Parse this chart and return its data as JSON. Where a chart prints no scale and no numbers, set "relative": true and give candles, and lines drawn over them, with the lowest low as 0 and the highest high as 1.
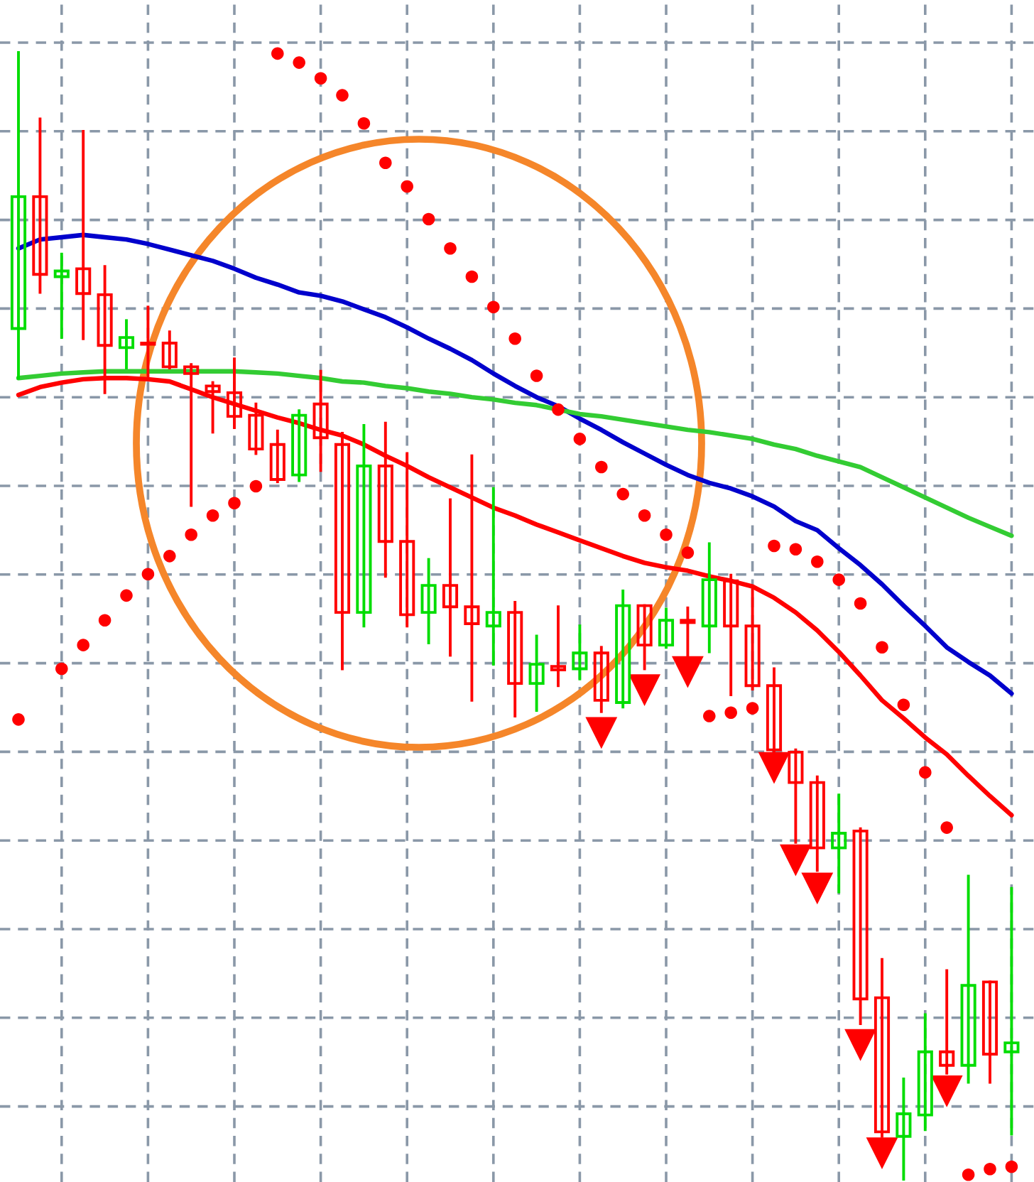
{
  "chart_data": {
    "type": "candlestick",
    "relative": true,
    "grid": true,
    "tick_labels": false,
    "categories": [
      null,
      null,
      null,
      null,
      null,
      null,
      null,
      null,
      null,
      null,
      null,
      null,
      null,
      null,
      null,
      null,
      null,
      null,
      null,
      null,
      null,
      null,
      null,
      null,
      null,
      null,
      null,
      null,
      null,
      null,
      null,
      null,
      null,
      null,
      null,
      null,
      null,
      null,
      null,
      null,
      null,
      null,
      null,
      null,
      null,
      null,
      null
    ],
    "ohlc": [
      [
        0.755,
        1.0,
        0.711,
        0.872
      ],
      [
        0.872,
        0.941,
        0.787,
        0.803
      ],
      [
        0.801,
        0.821,
        0.747,
        0.806
      ],
      [
        0.808,
        0.93,
        0.746,
        0.786
      ],
      [
        0.785,
        0.81,
        0.698,
        0.74
      ],
      [
        0.738,
        0.762,
        0.72,
        0.747
      ],
      [
        0.742,
        0.774,
        0.711,
        0.741
      ],
      [
        0.742,
        0.752,
        0.72,
        0.721
      ],
      [
        0.721,
        0.723,
        0.598,
        0.715
      ],
      [
        0.704,
        0.707,
        0.663,
        0.699
      ],
      [
        0.698,
        0.728,
        0.667,
        0.677
      ],
      [
        0.678,
        0.688,
        0.644,
        0.648
      ],
      [
        0.652,
        0.664,
        0.619,
        0.621
      ],
      [
        0.625,
        0.682,
        0.62,
        0.678
      ],
      [
        0.688,
        0.717,
        0.629,
        0.658
      ],
      [
        0.652,
        0.662,
        0.453,
        0.503
      ],
      [
        0.503,
        0.669,
        0.491,
        0.633
      ],
      [
        0.633,
        0.671,
        0.535,
        0.566
      ],
      [
        0.566,
        0.644,
        0.491,
        0.501
      ],
      [
        0.503,
        0.55,
        0.476,
        0.527
      ],
      [
        0.527,
        0.603,
        0.465,
        0.508
      ],
      [
        0.508,
        0.642,
        0.425,
        0.493
      ],
      [
        0.491,
        0.613,
        0.457,
        0.503
      ],
      [
        0.503,
        0.512,
        0.411,
        0.44
      ],
      [
        0.44,
        0.482,
        0.416,
        0.457
      ],
      [
        0.455,
        0.508,
        0.438,
        0.452
      ],
      [
        0.453,
        0.491,
        0.444,
        0.467
      ],
      [
        0.467,
        0.472,
        0.415,
        0.425
      ],
      [
        0.423,
        0.522,
        0.419,
        0.509
      ],
      [
        0.509,
        0.509,
        0.453,
        0.474
      ],
      [
        0.474,
        0.506,
        0.472,
        0.496
      ],
      [
        0.496,
        0.507,
        0.459,
        0.494
      ],
      [
        0.491,
        0.564,
        0.468,
        0.532
      ],
      [
        0.531,
        0.536,
        0.43,
        0.491
      ],
      [
        0.491,
        0.523,
        0.435,
        0.438
      ],
      [
        0.438,
        0.453,
        0.377,
        0.381
      ],
      [
        0.379,
        0.381,
        0.299,
        0.352
      ],
      [
        0.352,
        0.357,
        0.274,
        0.294
      ],
      [
        0.294,
        0.341,
        0.255,
        0.307
      ],
      [
        0.309,
        0.311,
        0.138,
        0.16
      ],
      [
        0.161,
        0.195,
        0.038,
        0.042
      ],
      [
        0.038,
        0.089,
        0.0,
        0.058
      ],
      [
        0.057,
        0.146,
        0.044,
        0.113
      ],
      [
        0.113,
        0.185,
        0.094,
        0.101
      ],
      [
        0.101,
        0.269,
        0.086,
        0.172
      ],
      [
        0.175,
        0.175,
        0.086,
        0.111
      ],
      [
        0.113,
        0.258,
        0.04,
        0.121
      ]
    ],
    "colors": [
      "#00dd00",
      "#ff0000",
      "#00dd00",
      "#ff0000",
      "#ff0000",
      "#00dd00",
      "#ff0000",
      "#ff0000",
      "#ff0000",
      "#ff0000",
      "#ff0000",
      "#ff0000",
      "#ff0000",
      "#00dd00",
      "#ff0000",
      "#ff0000",
      "#00dd00",
      "#ff0000",
      "#ff0000",
      "#00dd00",
      "#ff0000",
      "#ff0000",
      "#00dd00",
      "#ff0000",
      "#00dd00",
      "#ff0000",
      "#00dd00",
      "#ff0000",
      "#00dd00",
      "#ff0000",
      "#00dd00",
      "#ff0000",
      "#00dd00",
      "#ff0000",
      "#ff0000",
      "#ff0000",
      "#ff0000",
      "#ff0000",
      "#00dd00",
      "#ff0000",
      "#ff0000",
      "#00dd00",
      "#00dd00",
      "#ff0000",
      "#00dd00",
      "#ff0000",
      "#00dd00"
    ],
    "series": [
      {
        "type": "line",
        "color": "#0000cc",
        "values": [
          0.826,
          0.834,
          0.836,
          0.838,
          0.836,
          0.834,
          0.83,
          0.825,
          0.82,
          0.815,
          0.808,
          0.8,
          0.794,
          0.787,
          0.784,
          0.779,
          0.772,
          0.765,
          0.756,
          0.746,
          0.737,
          0.727,
          0.715,
          0.704,
          0.694,
          0.686,
          0.675,
          0.665,
          0.654,
          0.644,
          0.634,
          0.625,
          0.618,
          0.613,
          0.606,
          0.597,
          0.584,
          0.576,
          0.56,
          0.545,
          0.528,
          0.509,
          0.491,
          0.472,
          0.459,
          0.447,
          0.431
        ]
      },
      {
        "type": "line",
        "color": "#33cc33",
        "values": [
          0.711,
          0.713,
          0.715,
          0.716,
          0.717,
          0.717,
          0.717,
          0.717,
          0.717,
          0.717,
          0.717,
          0.716,
          0.715,
          0.713,
          0.711,
          0.708,
          0.707,
          0.704,
          0.702,
          0.699,
          0.697,
          0.694,
          0.692,
          0.689,
          0.687,
          0.683,
          0.679,
          0.677,
          0.674,
          0.671,
          0.668,
          0.665,
          0.663,
          0.66,
          0.657,
          0.652,
          0.648,
          0.642,
          0.637,
          0.632,
          0.623,
          0.614,
          0.605,
          0.596,
          0.587,
          0.579,
          0.571
        ]
      },
      {
        "type": "line",
        "color": "#ff0000",
        "values": [
          0.696,
          0.703,
          0.707,
          0.71,
          0.711,
          0.711,
          0.71,
          0.708,
          0.701,
          0.694,
          0.688,
          0.682,
          0.676,
          0.671,
          0.665,
          0.66,
          0.652,
          0.642,
          0.633,
          0.623,
          0.614,
          0.605,
          0.596,
          0.589,
          0.581,
          0.574,
          0.567,
          0.56,
          0.553,
          0.547,
          0.543,
          0.54,
          0.535,
          0.531,
          0.526,
          0.516,
          0.503,
          0.487,
          0.468,
          0.447,
          0.425,
          0.409,
          0.392,
          0.377,
          0.358,
          0.34,
          0.323
        ]
      },
      {
        "type": "scatter",
        "marker": "circle",
        "color": "#ff0000",
        "values": [
          0.408,
          null,
          0.453,
          0.474,
          0.496,
          0.518,
          0.537,
          0.553,
          0.572,
          0.589,
          0.6,
          0.615,
          0.999,
          0.991,
          0.977,
          0.962,
          0.937,
          0.902,
          0.881,
          0.852,
          0.826,
          0.801,
          0.774,
          0.746,
          0.713,
          0.683,
          0.657,
          0.632,
          0.608,
          0.589,
          0.572,
          0.556,
          0.411,
          0.414,
          0.418,
          0.562,
          0.559,
          0.548,
          0.532,
          0.511,
          0.472,
          0.421,
          0.361,
          0.312,
          0.004,
          0.009,
          0.011
        ]
      },
      {
        "type": "scatter",
        "marker": "triangle",
        "color": "#ff0000",
        "values": [
          null,
          null,
          null,
          null,
          null,
          null,
          null,
          null,
          null,
          null,
          null,
          null,
          null,
          null,
          null,
          null,
          null,
          null,
          null,
          null,
          null,
          null,
          null,
          null,
          null,
          null,
          null,
          0.396,
          null,
          0.434,
          null,
          0.45,
          null,
          null,
          null,
          0.365,
          0.283,
          0.258,
          null,
          0.119,
          0.023,
          null,
          null,
          0.078,
          null,
          null,
          null
        ]
      }
    ]
  }
}
